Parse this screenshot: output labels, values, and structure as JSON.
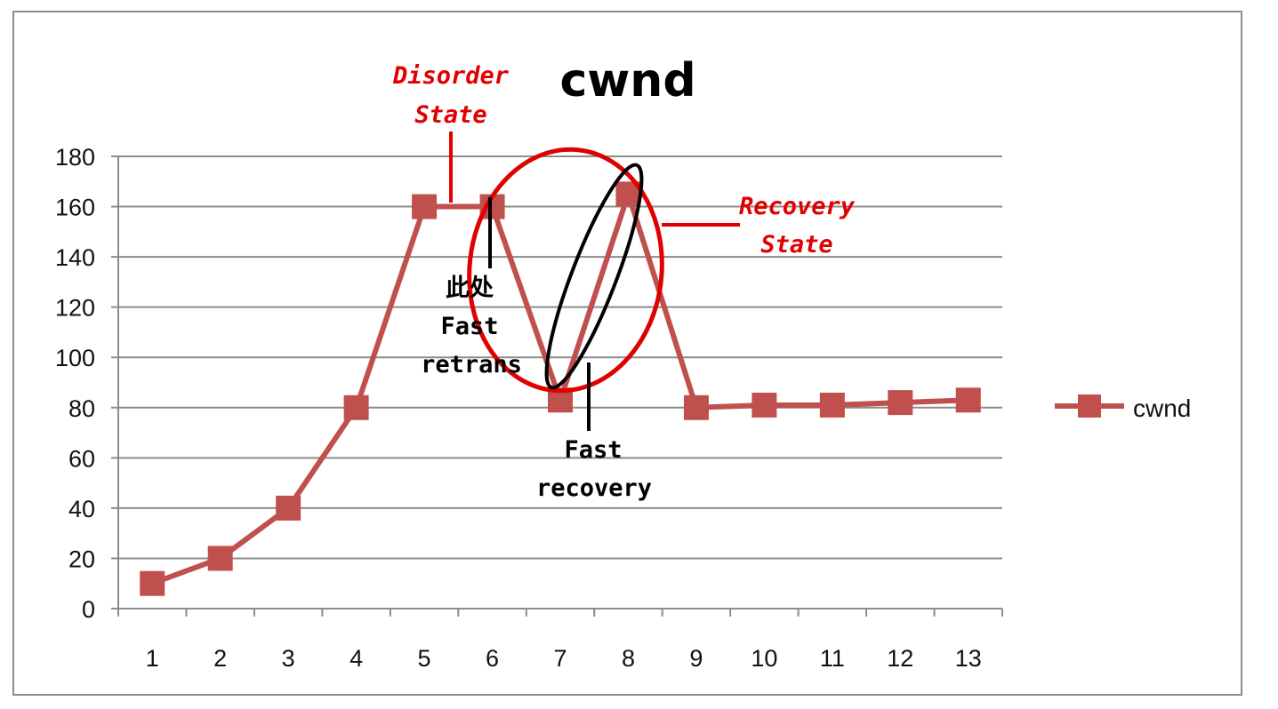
{
  "chart_data": {
    "type": "line",
    "title": "cwnd",
    "xlabel": "",
    "ylabel": "",
    "categories": [
      "1",
      "2",
      "3",
      "4",
      "5",
      "6",
      "7",
      "8",
      "9",
      "10",
      "11",
      "12",
      "13"
    ],
    "series": [
      {
        "name": "cwnd",
        "values": [
          10,
          20,
          40,
          80,
          160,
          160,
          83,
          165,
          80,
          81,
          81,
          82,
          83
        ]
      }
    ],
    "ylim": [
      0,
      180
    ],
    "yticks": [
      0,
      20,
      40,
      60,
      80,
      100,
      120,
      140,
      160,
      180
    ],
    "grid": true,
    "legend": "right",
    "series_color": "#c0504d"
  },
  "annotations": {
    "disorder_line1": "Disorder",
    "disorder_line2": "State",
    "recovery_line1": "Recovery",
    "recovery_line2": "State",
    "retrans_line1": "此处",
    "retrans_line2": "Fast",
    "retrans_line3": "retrans",
    "fastrec_line1": "Fast",
    "fastrec_line2": "recovery",
    "note_color": "#e00000"
  }
}
